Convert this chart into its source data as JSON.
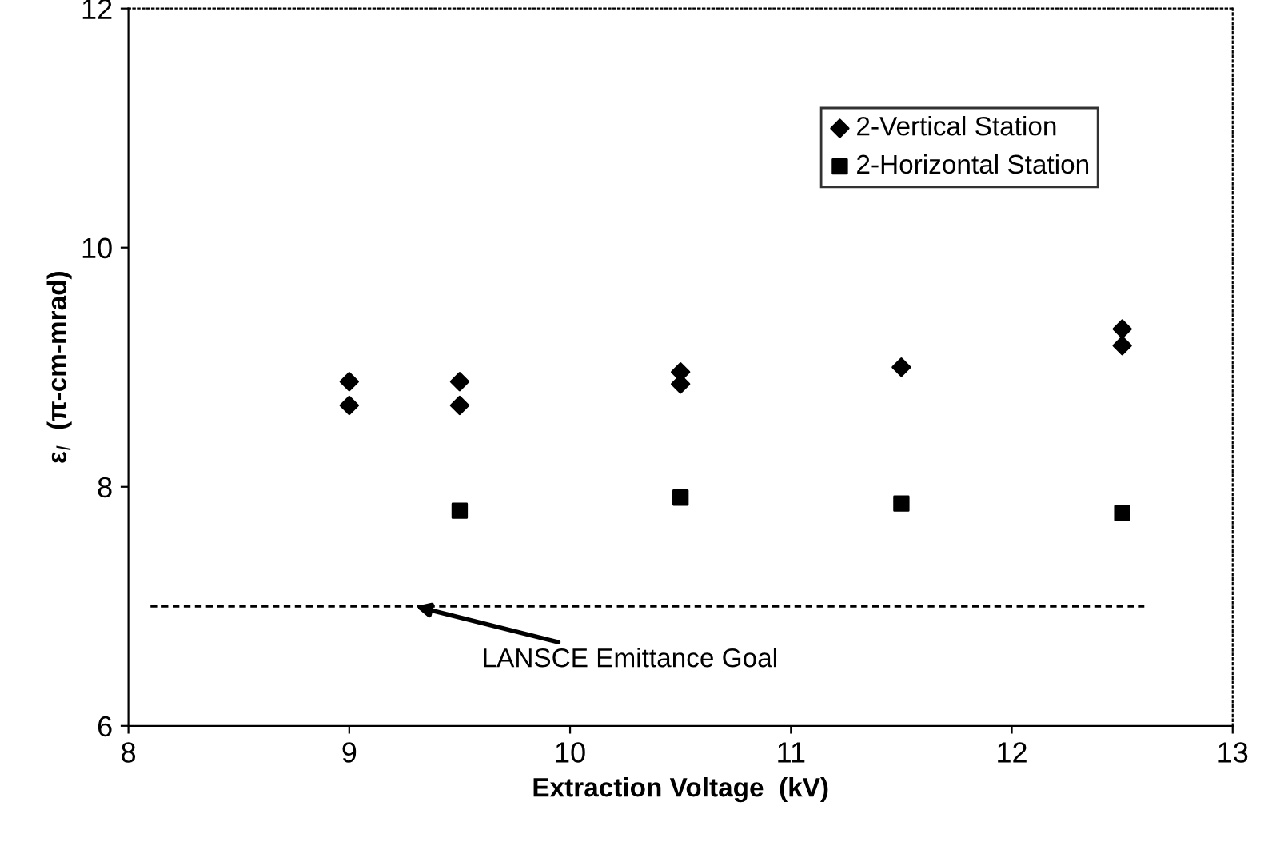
{
  "chart_data": {
    "type": "scatter",
    "xlabel": "Extraction Voltage  (kV)",
    "ylabel": "ε$_{l}$  (π-cm-mrad)",
    "xlim": [
      8,
      13
    ],
    "xticks": [
      8,
      9,
      10,
      11,
      12,
      13
    ],
    "ylim": [
      6,
      12
    ],
    "yticks": [
      6,
      8,
      10,
      12
    ],
    "series": [
      {
        "name": "2-Vertical Station",
        "color": "#000000",
        "marker": "diamond",
        "x": [
          9,
          9,
          9.5,
          9.5,
          10.5,
          10.5,
          11.5,
          12.5,
          12.5
        ],
        "values": [
          8.88,
          8.68,
          8.88,
          8.68,
          8.96,
          8.86,
          9.0,
          9.32,
          9.18
        ]
      },
      {
        "name": "2-Horizontal Station",
        "color": "#000000",
        "marker": "square",
        "x": [
          9.5,
          10.5,
          11.5,
          12.5
        ],
        "values": [
          7.8,
          7.91,
          7.86,
          7.78
        ]
      }
    ],
    "ref_lines": [
      {
        "axis": "y",
        "value": 7.0,
        "label": "LANSCE Emittance Goal",
        "color": "#000000",
        "line_style": "dashed"
      }
    ],
    "grid": false,
    "legend": "top right"
  }
}
